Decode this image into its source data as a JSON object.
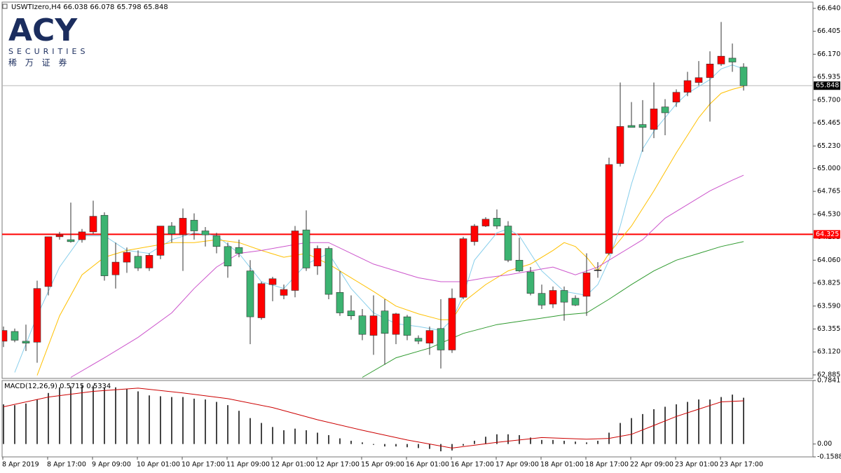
{
  "logo": {
    "name": "ACY",
    "tagline": "SECURITIES",
    "chinese": "稀 万 证 券"
  },
  "chart_data": [
    {
      "type": "candlestick",
      "title": "USWTIzero,H4  66.038 66.078 65.798 65.848",
      "categories": [
        "8 Apr 2019",
        null,
        null,
        null,
        "8 Apr 17:00",
        null,
        null,
        null,
        "9 Apr 09:00",
        null,
        null,
        null,
        "10 Apr 01:00",
        null,
        null,
        null,
        "10 Apr 17:00",
        null,
        null,
        null,
        "11 Apr 09:00",
        null,
        null,
        null,
        "12 Apr 01:00",
        null,
        null,
        null,
        "12 Apr 17:00",
        null,
        null,
        null,
        "15 Apr 09:00",
        null,
        null,
        null,
        "16 Apr 01:00",
        null,
        null,
        null,
        "16 Apr 17:00",
        null,
        null,
        null,
        "17 Apr 09:00",
        null,
        null,
        null,
        "18 Apr 01:00",
        null,
        null,
        null,
        "18 Apr 17:00",
        null,
        null,
        null,
        "22 Apr 09:00",
        null,
        null,
        null,
        "23 Apr 01:00",
        null,
        null,
        null,
        "23 Apr 17:00",
        null,
        null
      ],
      "open": [
        63.23,
        63.33,
        63.23,
        63.22,
        63.79,
        64.3,
        64.27,
        64.27,
        64.35,
        64.52,
        63.91,
        64.04,
        64.1,
        63.98,
        64.11,
        64.41,
        64.32,
        64.47,
        64.36,
        64.31,
        64.2,
        64.19,
        63.95,
        63.47,
        63.81,
        63.7,
        63.75,
        64.37,
        64.0,
        64.18,
        63.73,
        63.54,
        63.49,
        63.29,
        63.54,
        63.3,
        63.48,
        63.26,
        63.21,
        63.36,
        63.14,
        63.68,
        64.25,
        64.41,
        64.49,
        64.41,
        64.06,
        63.94,
        63.72,
        63.61,
        63.75,
        63.67,
        63.69,
        63.96,
        64.13,
        65.05,
        65.44,
        65.45,
        65.4,
        65.63,
        65.68,
        65.78,
        65.88,
        65.93,
        66.07,
        66.13,
        66.038
      ],
      "high": [
        63.38,
        63.36,
        63.4,
        63.85,
        64.3,
        64.35,
        64.65,
        64.38,
        64.67,
        64.55,
        64.24,
        64.19,
        64.16,
        64.13,
        64.41,
        64.45,
        64.59,
        64.54,
        64.4,
        64.34,
        64.24,
        64.27,
        64.06,
        63.84,
        63.89,
        63.81,
        64.41,
        64.57,
        64.21,
        64.2,
        63.95,
        63.7,
        63.56,
        63.7,
        63.66,
        63.52,
        63.5,
        63.29,
        63.38,
        63.66,
        63.77,
        64.3,
        64.43,
        64.5,
        64.58,
        64.46,
        64.29,
        63.99,
        63.81,
        63.79,
        63.79,
        63.7,
        64.13,
        64.04,
        65.11,
        65.88,
        65.68,
        65.7,
        65.88,
        65.71,
        65.81,
        65.99,
        66.1,
        66.2,
        66.5,
        66.28,
        66.078
      ],
      "low": [
        63.17,
        63.22,
        63.13,
        63.01,
        63.7,
        64.27,
        64.24,
        64.24,
        64.33,
        63.85,
        63.77,
        63.93,
        63.95,
        63.95,
        64.07,
        64.24,
        63.95,
        64.27,
        64.2,
        64.13,
        63.88,
        64.09,
        63.2,
        63.45,
        63.64,
        63.66,
        63.68,
        63.95,
        63.91,
        63.66,
        63.49,
        63.45,
        63.24,
        63.09,
        62.99,
        63.2,
        63.24,
        63.2,
        63.09,
        62.95,
        63.11,
        63.66,
        64.21,
        64.4,
        64.38,
        64.04,
        63.94,
        63.7,
        63.56,
        63.57,
        63.44,
        63.59,
        63.49,
        63.88,
        64.11,
        65.02,
        65.42,
        65.17,
        65.31,
        65.34,
        65.63,
        65.74,
        65.85,
        65.48,
        66.05,
        65.99,
        65.798
      ],
      "close": [
        63.34,
        63.24,
        63.21,
        63.77,
        64.3,
        64.32,
        64.25,
        64.35,
        64.51,
        63.9,
        64.04,
        64.14,
        63.98,
        64.11,
        64.41,
        64.33,
        64.49,
        64.36,
        64.32,
        64.2,
        64.0,
        64.13,
        63.48,
        63.82,
        63.87,
        63.76,
        64.36,
        63.98,
        64.18,
        63.71,
        63.52,
        63.49,
        63.3,
        63.49,
        63.31,
        63.51,
        63.29,
        63.23,
        63.34,
        63.14,
        63.67,
        64.28,
        64.41,
        64.48,
        64.41,
        64.06,
        63.95,
        63.72,
        63.6,
        63.75,
        63.63,
        63.6,
        63.93,
        63.96,
        65.04,
        65.43,
        65.42,
        65.42,
        65.61,
        65.57,
        65.78,
        65.9,
        65.93,
        66.07,
        66.15,
        66.09,
        65.848
      ],
      "up_color": "#ff0000",
      "down_color": "#3cb371",
      "lines": [
        {
          "color": "#87ceeb",
          "x": [
            1,
            3,
            5,
            7,
            9,
            11,
            13,
            15,
            17,
            19,
            21,
            23,
            25,
            27,
            29,
            31,
            33,
            35,
            37,
            39,
            40,
            41,
            42,
            44,
            45,
            46,
            47,
            48,
            50,
            52,
            53,
            54,
            55,
            56,
            57,
            58,
            59,
            60,
            61,
            62,
            63,
            64,
            65,
            66
          ],
          "values": [
            62.91,
            63.49,
            63.99,
            64.31,
            64.31,
            64.16,
            64.13,
            64.27,
            64.34,
            64.31,
            64.13,
            63.84,
            63.77,
            64.02,
            64.13,
            63.77,
            63.52,
            63.41,
            63.38,
            63.34,
            63.45,
            63.7,
            64.06,
            64.34,
            64.38,
            64.31,
            64.13,
            63.95,
            63.74,
            63.7,
            63.81,
            64.06,
            64.41,
            64.84,
            65.2,
            65.38,
            65.52,
            65.66,
            65.77,
            65.84,
            65.91,
            66.02,
            66.06,
            66.02
          ]
        },
        {
          "color": "#ffc000",
          "x": [
            3,
            5,
            7,
            9,
            11,
            13,
            15,
            17,
            19,
            21,
            23,
            25,
            27,
            29,
            31,
            33,
            35,
            37,
            39,
            40,
            41,
            43,
            45,
            47,
            49,
            50,
            51,
            52,
            53,
            54,
            56,
            58,
            60,
            62,
            63,
            64,
            65,
            66
          ],
          "values": [
            62.88,
            63.49,
            63.91,
            64.09,
            64.16,
            64.2,
            64.24,
            64.24,
            64.27,
            64.24,
            64.16,
            64.09,
            64.13,
            64.02,
            63.88,
            63.74,
            63.59,
            63.51,
            63.45,
            63.45,
            63.63,
            63.81,
            63.95,
            64.02,
            64.16,
            64.24,
            64.2,
            64.09,
            63.95,
            64.13,
            64.41,
            64.77,
            65.16,
            65.52,
            65.66,
            65.77,
            65.81,
            65.84
          ]
        },
        {
          "color": "#cc55cc",
          "x": [
            6,
            9,
            12,
            15,
            17,
            19,
            21,
            23,
            25,
            27,
            29,
            31,
            33,
            35,
            37,
            39,
            41,
            43,
            45,
            47,
            49,
            51,
            53,
            55,
            57,
            59,
            61,
            63,
            65,
            66
          ],
          "values": [
            62.86,
            63.06,
            63.27,
            63.52,
            63.77,
            63.99,
            64.13,
            64.16,
            64.2,
            64.24,
            64.24,
            64.13,
            64.02,
            63.95,
            63.88,
            63.84,
            63.84,
            63.88,
            63.91,
            63.95,
            63.99,
            63.91,
            63.99,
            64.13,
            64.27,
            64.49,
            64.63,
            64.77,
            64.88,
            64.93
          ]
        },
        {
          "color": "#2e9a2e",
          "x": [
            32,
            35,
            38,
            41,
            44,
            47,
            50,
            52,
            54,
            56,
            58,
            60,
            62,
            64,
            66
          ],
          "values": [
            62.86,
            63.06,
            63.16,
            63.31,
            63.4,
            63.45,
            63.5,
            63.52,
            63.66,
            63.81,
            63.95,
            64.06,
            64.13,
            64.2,
            64.25
          ]
        }
      ],
      "hlines": [
        {
          "value": 64.325,
          "color": "#ff0000"
        },
        {
          "value": 65.848,
          "color": "#b8b8b8"
        }
      ],
      "ylim": [
        62.849,
        66.704
      ],
      "yticks": [
        {
          "value": 66.64,
          "label": "66.640"
        },
        66.405,
        {
          "value": 66.17,
          "label": "66.170"
        },
        65.935,
        {
          "value": 65.7,
          "label": "65.700"
        },
        65.465,
        {
          "value": 65.23,
          "label": "65.230"
        },
        {
          "value": 65,
          "label": "65.000"
        },
        64.765,
        {
          "value": 64.53,
          "label": "64.530"
        },
        64.295,
        {
          "value": 64.06,
          "label": "64.060"
        },
        63.825,
        {
          "value": 63.59,
          "label": "63.590"
        },
        63.355,
        {
          "value": 63.12,
          "label": "63.120"
        },
        62.885
      ]
    },
    {
      "type": "macd",
      "title": "MACD(12,26,9) 0.5715 0.5334",
      "histogram": [
        0.49,
        0.48,
        0.5,
        0.55,
        0.63,
        0.7,
        0.71,
        0.72,
        0.72,
        0.7,
        0.7,
        0.68,
        0.65,
        0.6,
        0.59,
        0.58,
        0.58,
        0.56,
        0.55,
        0.52,
        0.48,
        0.41,
        0.32,
        0.26,
        0.21,
        0.17,
        0.19,
        0.17,
        0.14,
        0.11,
        0.07,
        0.04,
        0.02,
        -0.01,
        -0.03,
        -0.03,
        -0.04,
        -0.05,
        -0.06,
        -0.09,
        -0.08,
        -0.02,
        0.04,
        0.09,
        0.12,
        0.12,
        0.11,
        0.08,
        0.05,
        0.05,
        0.04,
        0.03,
        0.02,
        0.04,
        0.14,
        0.26,
        0.32,
        0.37,
        0.43,
        0.46,
        0.49,
        0.52,
        0.55,
        0.55,
        0.58,
        0.61,
        0.5715
      ],
      "histogram_color": "#444444",
      "signal": {
        "color": "#cc0000",
        "x": [
          0,
          4,
          8,
          12,
          16,
          20,
          24,
          28,
          32,
          36,
          40,
          44,
          48,
          52,
          54,
          56,
          58,
          60,
          62,
          64,
          66
        ],
        "values": [
          0.46,
          0.58,
          0.65,
          0.69,
          0.63,
          0.56,
          0.45,
          0.3,
          0.17,
          0.05,
          -0.05,
          0.02,
          0.08,
          0.06,
          0.07,
          0.12,
          0.23,
          0.34,
          0.43,
          0.52,
          0.5334
        ]
      },
      "ylim": [
        -0.1588,
        0.7841
      ],
      "yticks": [
        0.7841,
        {
          "value": 0,
          "label": "0.00"
        },
        -0.1588
      ]
    }
  ]
}
